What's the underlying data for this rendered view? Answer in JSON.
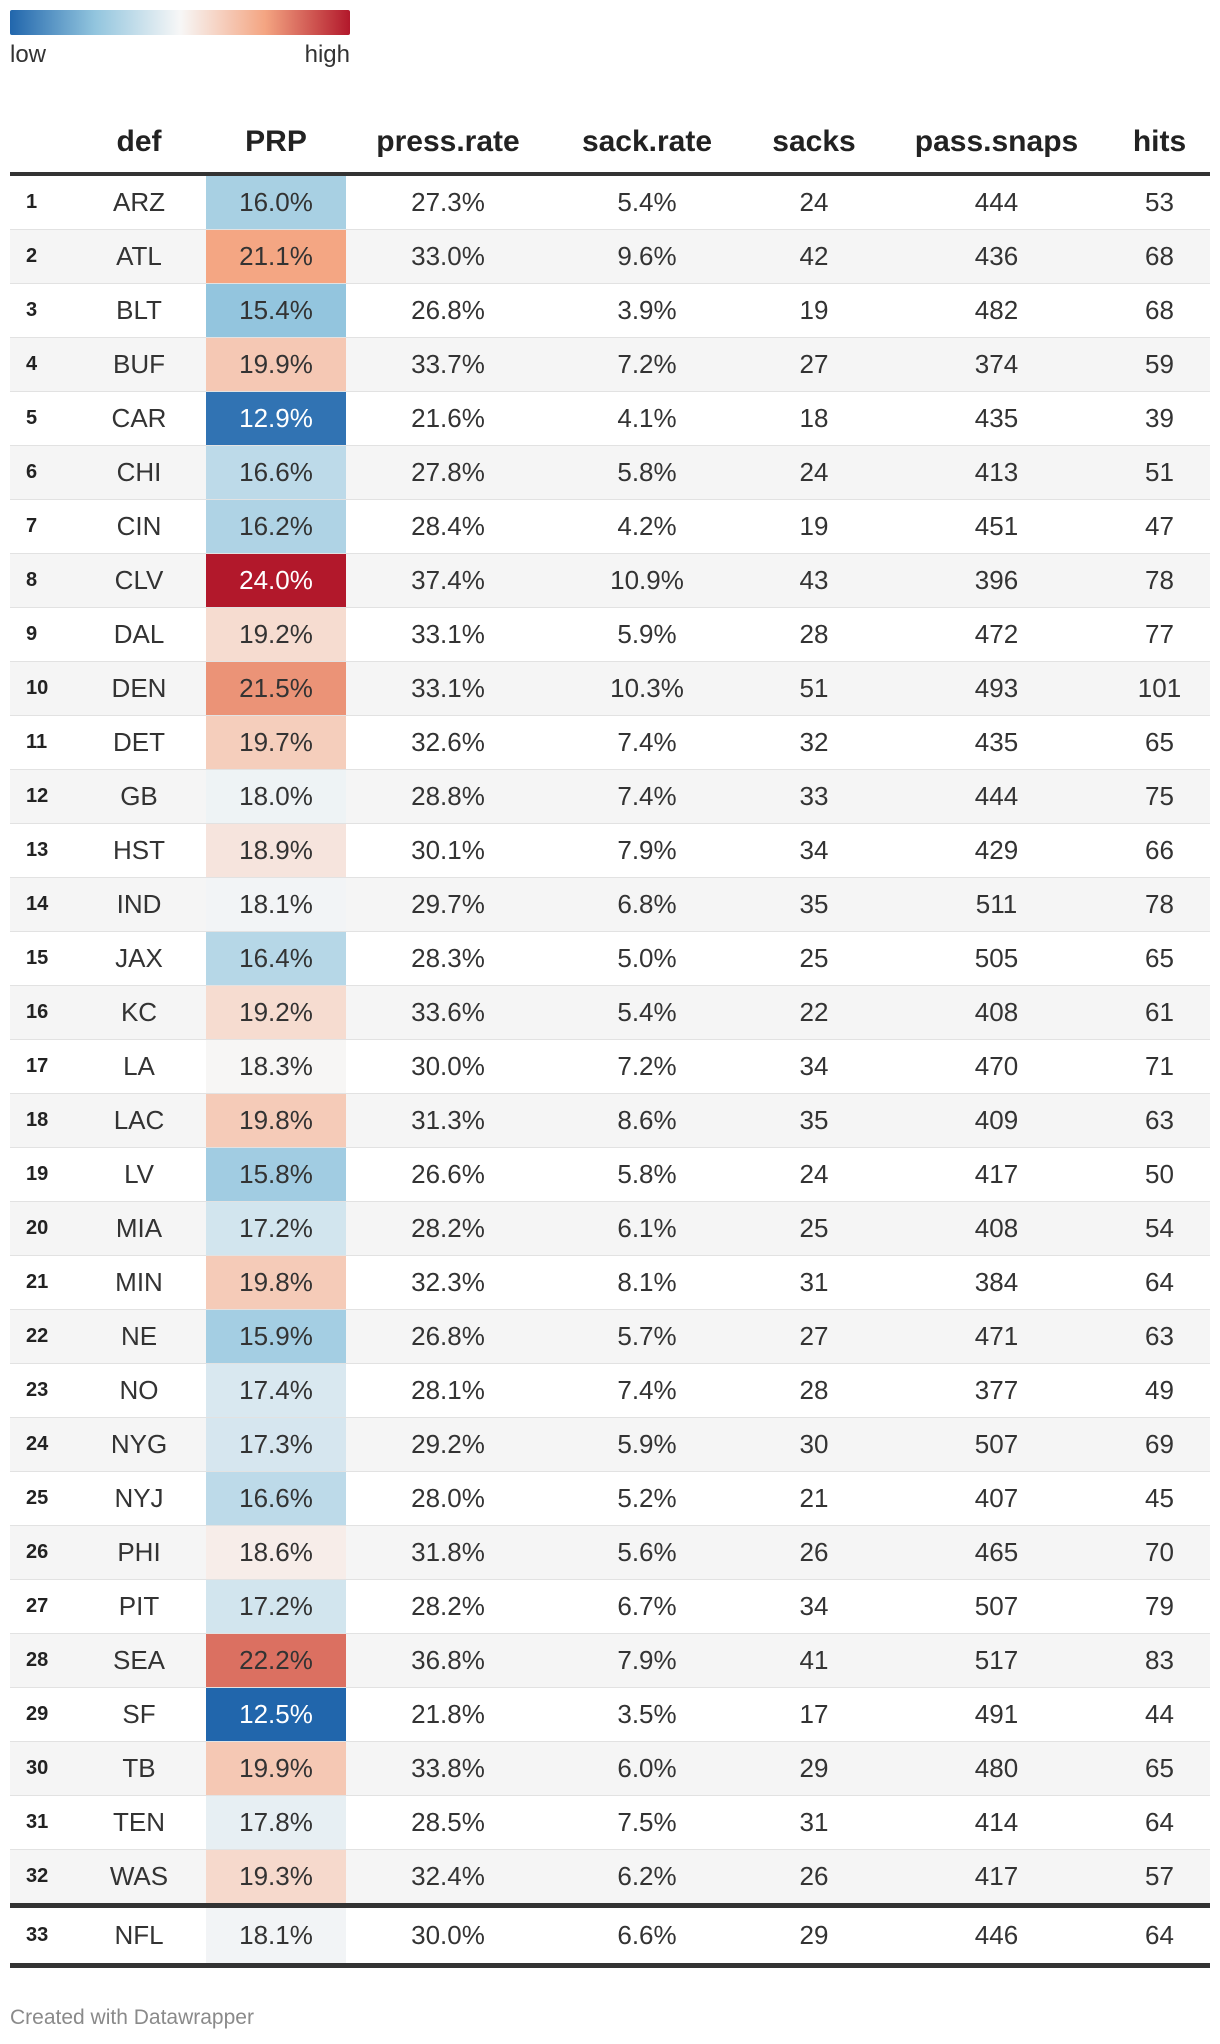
{
  "legend": {
    "low_label": "low",
    "high_label": "high",
    "colors": [
      "#2166ac",
      "#92c5de",
      "#f7f7f7",
      "#f4a582",
      "#b2182b"
    ]
  },
  "chart_data": {
    "type": "table",
    "columns": [
      "",
      "def",
      "PRP",
      "press.rate",
      "sack.rate",
      "sacks",
      "pass.snaps",
      "hits"
    ],
    "heatmap_column": "PRP",
    "rows": [
      {
        "rank": "1",
        "def": "ARZ",
        "PRP": "16.0%",
        "press_rate": "27.3%",
        "sack_rate": "5.4%",
        "sacks": "24",
        "pass_snaps": "444",
        "hits": "53"
      },
      {
        "rank": "2",
        "def": "ATL",
        "PRP": "21.1%",
        "press_rate": "33.0%",
        "sack_rate": "9.6%",
        "sacks": "42",
        "pass_snaps": "436",
        "hits": "68"
      },
      {
        "rank": "3",
        "def": "BLT",
        "PRP": "15.4%",
        "press_rate": "26.8%",
        "sack_rate": "3.9%",
        "sacks": "19",
        "pass_snaps": "482",
        "hits": "68"
      },
      {
        "rank": "4",
        "def": "BUF",
        "PRP": "19.9%",
        "press_rate": "33.7%",
        "sack_rate": "7.2%",
        "sacks": "27",
        "pass_snaps": "374",
        "hits": "59"
      },
      {
        "rank": "5",
        "def": "CAR",
        "PRP": "12.9%",
        "press_rate": "21.6%",
        "sack_rate": "4.1%",
        "sacks": "18",
        "pass_snaps": "435",
        "hits": "39"
      },
      {
        "rank": "6",
        "def": "CHI",
        "PRP": "16.6%",
        "press_rate": "27.8%",
        "sack_rate": "5.8%",
        "sacks": "24",
        "pass_snaps": "413",
        "hits": "51"
      },
      {
        "rank": "7",
        "def": "CIN",
        "PRP": "16.2%",
        "press_rate": "28.4%",
        "sack_rate": "4.2%",
        "sacks": "19",
        "pass_snaps": "451",
        "hits": "47"
      },
      {
        "rank": "8",
        "def": "CLV",
        "PRP": "24.0%",
        "press_rate": "37.4%",
        "sack_rate": "10.9%",
        "sacks": "43",
        "pass_snaps": "396",
        "hits": "78"
      },
      {
        "rank": "9",
        "def": "DAL",
        "PRP": "19.2%",
        "press_rate": "33.1%",
        "sack_rate": "5.9%",
        "sacks": "28",
        "pass_snaps": "472",
        "hits": "77"
      },
      {
        "rank": "10",
        "def": "DEN",
        "PRP": "21.5%",
        "press_rate": "33.1%",
        "sack_rate": "10.3%",
        "sacks": "51",
        "pass_snaps": "493",
        "hits": "101"
      },
      {
        "rank": "11",
        "def": "DET",
        "PRP": "19.7%",
        "press_rate": "32.6%",
        "sack_rate": "7.4%",
        "sacks": "32",
        "pass_snaps": "435",
        "hits": "65"
      },
      {
        "rank": "12",
        "def": "GB",
        "PRP": "18.0%",
        "press_rate": "28.8%",
        "sack_rate": "7.4%",
        "sacks": "33",
        "pass_snaps": "444",
        "hits": "75"
      },
      {
        "rank": "13",
        "def": "HST",
        "PRP": "18.9%",
        "press_rate": "30.1%",
        "sack_rate": "7.9%",
        "sacks": "34",
        "pass_snaps": "429",
        "hits": "66"
      },
      {
        "rank": "14",
        "def": "IND",
        "PRP": "18.1%",
        "press_rate": "29.7%",
        "sack_rate": "6.8%",
        "sacks": "35",
        "pass_snaps": "511",
        "hits": "78"
      },
      {
        "rank": "15",
        "def": "JAX",
        "PRP": "16.4%",
        "press_rate": "28.3%",
        "sack_rate": "5.0%",
        "sacks": "25",
        "pass_snaps": "505",
        "hits": "65"
      },
      {
        "rank": "16",
        "def": "KC",
        "PRP": "19.2%",
        "press_rate": "33.6%",
        "sack_rate": "5.4%",
        "sacks": "22",
        "pass_snaps": "408",
        "hits": "61"
      },
      {
        "rank": "17",
        "def": "LA",
        "PRP": "18.3%",
        "press_rate": "30.0%",
        "sack_rate": "7.2%",
        "sacks": "34",
        "pass_snaps": "470",
        "hits": "71"
      },
      {
        "rank": "18",
        "def": "LAC",
        "PRP": "19.8%",
        "press_rate": "31.3%",
        "sack_rate": "8.6%",
        "sacks": "35",
        "pass_snaps": "409",
        "hits": "63"
      },
      {
        "rank": "19",
        "def": "LV",
        "PRP": "15.8%",
        "press_rate": "26.6%",
        "sack_rate": "5.8%",
        "sacks": "24",
        "pass_snaps": "417",
        "hits": "50"
      },
      {
        "rank": "20",
        "def": "MIA",
        "PRP": "17.2%",
        "press_rate": "28.2%",
        "sack_rate": "6.1%",
        "sacks": "25",
        "pass_snaps": "408",
        "hits": "54"
      },
      {
        "rank": "21",
        "def": "MIN",
        "PRP": "19.8%",
        "press_rate": "32.3%",
        "sack_rate": "8.1%",
        "sacks": "31",
        "pass_snaps": "384",
        "hits": "64"
      },
      {
        "rank": "22",
        "def": "NE",
        "PRP": "15.9%",
        "press_rate": "26.8%",
        "sack_rate": "5.7%",
        "sacks": "27",
        "pass_snaps": "471",
        "hits": "63"
      },
      {
        "rank": "23",
        "def": "NO",
        "PRP": "17.4%",
        "press_rate": "28.1%",
        "sack_rate": "7.4%",
        "sacks": "28",
        "pass_snaps": "377",
        "hits": "49"
      },
      {
        "rank": "24",
        "def": "NYG",
        "PRP": "17.3%",
        "press_rate": "29.2%",
        "sack_rate": "5.9%",
        "sacks": "30",
        "pass_snaps": "507",
        "hits": "69"
      },
      {
        "rank": "25",
        "def": "NYJ",
        "PRP": "16.6%",
        "press_rate": "28.0%",
        "sack_rate": "5.2%",
        "sacks": "21",
        "pass_snaps": "407",
        "hits": "45"
      },
      {
        "rank": "26",
        "def": "PHI",
        "PRP": "18.6%",
        "press_rate": "31.8%",
        "sack_rate": "5.6%",
        "sacks": "26",
        "pass_snaps": "465",
        "hits": "70"
      },
      {
        "rank": "27",
        "def": "PIT",
        "PRP": "17.2%",
        "press_rate": "28.2%",
        "sack_rate": "6.7%",
        "sacks": "34",
        "pass_snaps": "507",
        "hits": "79"
      },
      {
        "rank": "28",
        "def": "SEA",
        "PRP": "22.2%",
        "press_rate": "36.8%",
        "sack_rate": "7.9%",
        "sacks": "41",
        "pass_snaps": "517",
        "hits": "83"
      },
      {
        "rank": "29",
        "def": "SF",
        "PRP": "12.5%",
        "press_rate": "21.8%",
        "sack_rate": "3.5%",
        "sacks": "17",
        "pass_snaps": "491",
        "hits": "44"
      },
      {
        "rank": "30",
        "def": "TB",
        "PRP": "19.9%",
        "press_rate": "33.8%",
        "sack_rate": "6.0%",
        "sacks": "29",
        "pass_snaps": "480",
        "hits": "65"
      },
      {
        "rank": "31",
        "def": "TEN",
        "PRP": "17.8%",
        "press_rate": "28.5%",
        "sack_rate": "7.5%",
        "sacks": "31",
        "pass_snaps": "414",
        "hits": "64"
      },
      {
        "rank": "32",
        "def": "WAS",
        "PRP": "19.3%",
        "press_rate": "32.4%",
        "sack_rate": "6.2%",
        "sacks": "26",
        "pass_snaps": "417",
        "hits": "57"
      }
    ],
    "total_row": {
      "rank": "33",
      "def": "NFL",
      "PRP": "18.1%",
      "press_rate": "30.0%",
      "sack_rate": "6.6%",
      "sacks": "29",
      "pass_snaps": "446",
      "hits": "64"
    }
  },
  "footer": {
    "credit": "Created with Datawrapper"
  }
}
